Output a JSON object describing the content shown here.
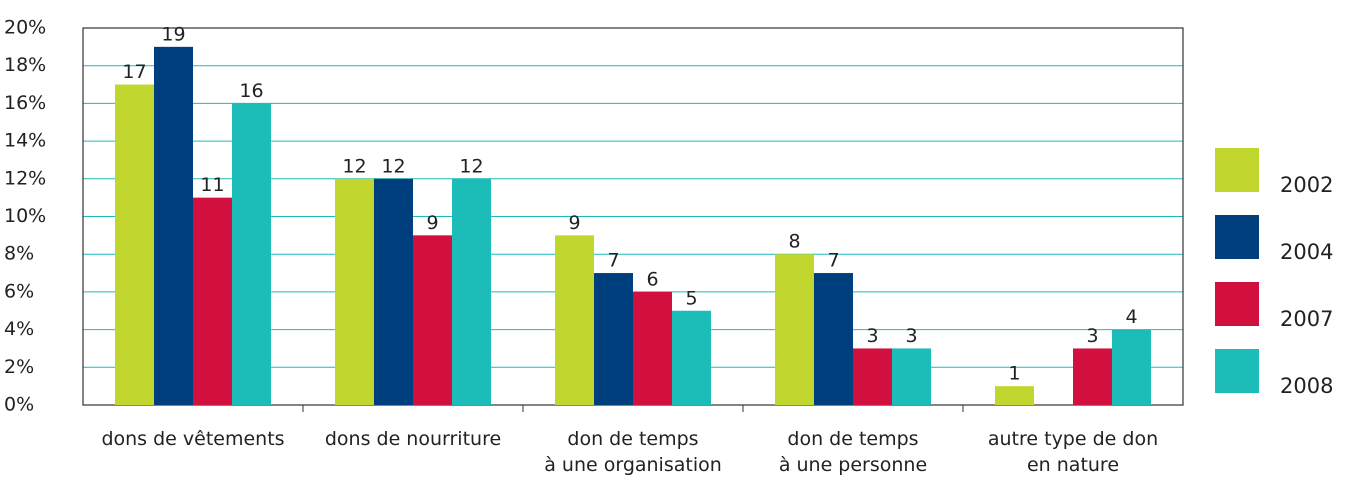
{
  "chart_data": {
    "type": "bar",
    "categories": [
      "dons de vêtements",
      "dons de nourriture",
      "don de temps\nà une organisation",
      "don de temps\nà une personne",
      "autre type de don\nen nature"
    ],
    "series": [
      {
        "name": "2002",
        "color": "#c1d72f",
        "values": [
          17,
          12,
          9,
          8,
          1
        ]
      },
      {
        "name": "2004",
        "color": "#003f7d",
        "values": [
          19,
          12,
          7,
          7,
          null
        ]
      },
      {
        "name": "2007",
        "color": "#d2103f",
        "values": [
          11,
          9,
          6,
          3,
          3
        ]
      },
      {
        "name": "2008",
        "color": "#1cbcb9",
        "values": [
          16,
          12,
          5,
          3,
          4
        ]
      }
    ],
    "ylim": [
      0,
      20
    ],
    "yticks": [
      {
        "value": 0,
        "label": "0%"
      },
      {
        "value": 2,
        "label": "2%"
      },
      {
        "value": 4,
        "label": "4%"
      },
      {
        "value": 6,
        "label": "6%"
      },
      {
        "value": 8,
        "label": "8%"
      },
      {
        "value": 10,
        "label": "10%"
      },
      {
        "value": 12,
        "label": "12%"
      },
      {
        "value": 14,
        "label": "14%"
      },
      {
        "value": 16,
        "label": "16%"
      },
      {
        "value": 18,
        "label": "18%"
      },
      {
        "value": 20,
        "label": "20%"
      }
    ],
    "grid": true,
    "grid_color": "#1cbcb9",
    "legend": "right"
  }
}
